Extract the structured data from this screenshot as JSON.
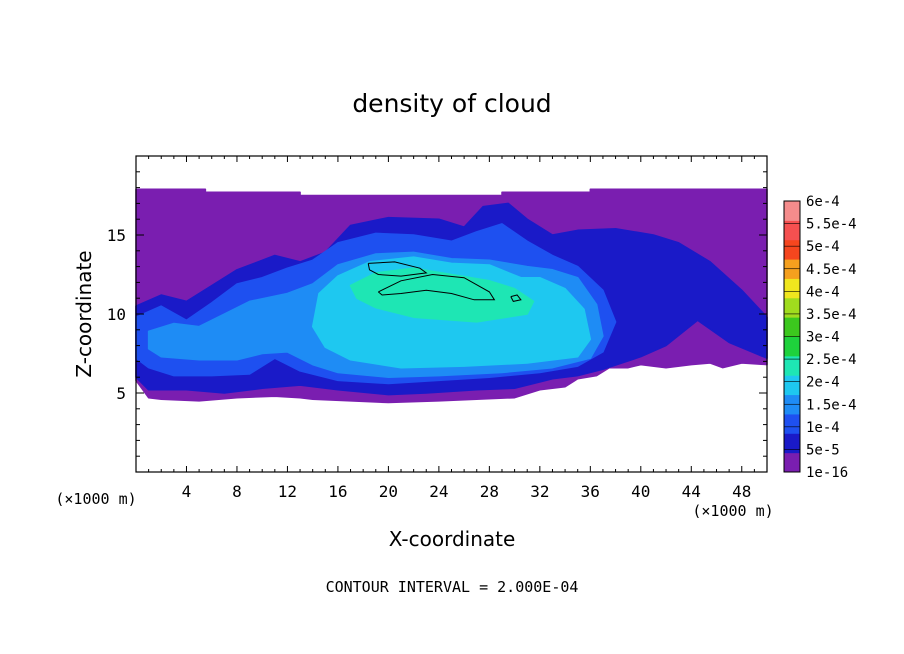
{
  "chart_data": {
    "type": "heatmap",
    "title": "density of cloud",
    "xlabel": "X-coordinate",
    "ylabel": "Z-coordinate",
    "x_unit": "(×1000 m)",
    "y_unit": "(×1000 m)",
    "xlim": [
      0,
      50
    ],
    "ylim": [
      0,
      20
    ],
    "x_ticks": [
      4,
      8,
      12,
      16,
      20,
      24,
      28,
      32,
      36,
      40,
      44,
      48
    ],
    "y_ticks": [
      5,
      10,
      15
    ],
    "footer": "CONTOUR INTERVAL = 2.000E-04",
    "contour_levels": [
      0.0002,
      0.0004
    ],
    "colorbar": {
      "labels": [
        "1e-16",
        "5e-5",
        "1e-4",
        "1.5e-4",
        "2e-4",
        "2.5e-4",
        "3e-4",
        "3.5e-4",
        "4e-4",
        "4.5e-4",
        "5e-4",
        "5.5e-4",
        "6e-4"
      ],
      "colors": [
        "#7a1eb0",
        "#1a1ac8",
        "#1e50f0",
        "#1e8cf5",
        "#1ec8f0",
        "#1ee6b4",
        "#1ed23c",
        "#3cc81e",
        "#a0dc1e",
        "#f0e61e",
        "#f5a01e",
        "#f5461e",
        "#f55050",
        "#f58c8c"
      ]
    },
    "regions": [
      {
        "level": "1e-16",
        "outline": [
          [
            0,
            17.9
          ],
          [
            5.5,
            17.9
          ],
          [
            5.5,
            17.7
          ],
          [
            13,
            17.7
          ],
          [
            13,
            17.5
          ],
          [
            29,
            17.5
          ],
          [
            29,
            17.7
          ],
          [
            36,
            17.7
          ],
          [
            36,
            17.9
          ],
          [
            50,
            17.9
          ],
          [
            50,
            6.8
          ],
          [
            48,
            6.9
          ],
          [
            46.5,
            6.6
          ],
          [
            45.5,
            6.9
          ],
          [
            44,
            6.8
          ],
          [
            42,
            6.6
          ],
          [
            40,
            6.8
          ],
          [
            39,
            6.6
          ],
          [
            37.5,
            6.6
          ],
          [
            36.5,
            6.1
          ],
          [
            35,
            5.9
          ],
          [
            34,
            5.4
          ],
          [
            32,
            5.2
          ],
          [
            30,
            4.7
          ],
          [
            27,
            4.6
          ],
          [
            24,
            4.5
          ],
          [
            20,
            4.4
          ],
          [
            17,
            4.5
          ],
          [
            14,
            4.6
          ],
          [
            13,
            4.7
          ],
          [
            11,
            4.8
          ],
          [
            8,
            4.7
          ],
          [
            5,
            4.5
          ],
          [
            2,
            4.6
          ],
          [
            1,
            4.7
          ],
          [
            0,
            5.8
          ]
        ]
      },
      {
        "level": "5e-5",
        "outline": [
          [
            0,
            10.5
          ],
          [
            2,
            11.2
          ],
          [
            4,
            10.8
          ],
          [
            6,
            11.8
          ],
          [
            8,
            12.8
          ],
          [
            11,
            13.7
          ],
          [
            13,
            13.3
          ],
          [
            15,
            13.9
          ],
          [
            17,
            15.6
          ],
          [
            20,
            16.1
          ],
          [
            24,
            16
          ],
          [
            26,
            15.5
          ],
          [
            27.5,
            16.8
          ],
          [
            29.5,
            17
          ],
          [
            31,
            16
          ],
          [
            33,
            15
          ],
          [
            35,
            15.3
          ],
          [
            38,
            15.4
          ],
          [
            41,
            15
          ],
          [
            43,
            14.5
          ],
          [
            45.5,
            13.3
          ],
          [
            48,
            11.5
          ],
          [
            50,
            9.8
          ],
          [
            50,
            7.2
          ],
          [
            47,
            8.2
          ],
          [
            44.5,
            9.6
          ],
          [
            42,
            8
          ],
          [
            40,
            7.3
          ],
          [
            37,
            6.5
          ],
          [
            35,
            6.1
          ],
          [
            33,
            5.9
          ],
          [
            30,
            5.3
          ],
          [
            27,
            5.2
          ],
          [
            23,
            5
          ],
          [
            20,
            4.9
          ],
          [
            16,
            5.2
          ],
          [
            13,
            5.5
          ],
          [
            10,
            5.3
          ],
          [
            7,
            5
          ],
          [
            4,
            5.2
          ],
          [
            1,
            5.2
          ],
          [
            0,
            6
          ]
        ]
      },
      {
        "level": "1e-4",
        "outline": [
          [
            0,
            9.8
          ],
          [
            2,
            10.5
          ],
          [
            4,
            9.6
          ],
          [
            6,
            10.7
          ],
          [
            8,
            11.9
          ],
          [
            10,
            12.3
          ],
          [
            12,
            12.9
          ],
          [
            14,
            13.4
          ],
          [
            16,
            14.5
          ],
          [
            19,
            15.1
          ],
          [
            22,
            15
          ],
          [
            25,
            14.6
          ],
          [
            27,
            15.2
          ],
          [
            29,
            15.7
          ],
          [
            31,
            14.6
          ],
          [
            33,
            13.7
          ],
          [
            35,
            13
          ],
          [
            37,
            11.5
          ],
          [
            38,
            9.5
          ],
          [
            37,
            7.6
          ],
          [
            35,
            6.7
          ],
          [
            32,
            6.3
          ],
          [
            28,
            6
          ],
          [
            24,
            5.8
          ],
          [
            20,
            5.6
          ],
          [
            16,
            5.8
          ],
          [
            13,
            6.4
          ],
          [
            11,
            7.2
          ],
          [
            9,
            6.2
          ],
          [
            6,
            6.1
          ],
          [
            3,
            6.1
          ],
          [
            1,
            6.6
          ],
          [
            0,
            7.2
          ]
        ]
      },
      {
        "level": "1.5e-4",
        "outline": [
          [
            1,
            8.9
          ],
          [
            3,
            9.4
          ],
          [
            5,
            9.2
          ],
          [
            7,
            10
          ],
          [
            9,
            10.8
          ],
          [
            12,
            11.3
          ],
          [
            14,
            11.9
          ],
          [
            16,
            13.1
          ],
          [
            19,
            13.8
          ],
          [
            22,
            13.9
          ],
          [
            25,
            13.5
          ],
          [
            28,
            13.4
          ],
          [
            31,
            13
          ],
          [
            33,
            12.8
          ],
          [
            35,
            12.3
          ],
          [
            36.5,
            10.6
          ],
          [
            37,
            8.6
          ],
          [
            36,
            7.2
          ],
          [
            33,
            6.6
          ],
          [
            29,
            6.3
          ],
          [
            24,
            6.1
          ],
          [
            20,
            6
          ],
          [
            16,
            6.3
          ],
          [
            14,
            6.8
          ],
          [
            12,
            7.6
          ],
          [
            10,
            7.5
          ],
          [
            8,
            7.1
          ],
          [
            5,
            7.1
          ],
          [
            2,
            7.3
          ],
          [
            1,
            7.8
          ]
        ]
      },
      {
        "level": "2e-4",
        "outline": [
          [
            14.5,
            11.3
          ],
          [
            16,
            12.4
          ],
          [
            18.5,
            13.3
          ],
          [
            22,
            13.6
          ],
          [
            25,
            13.2
          ],
          [
            28,
            13.1
          ],
          [
            30.5,
            12.3
          ],
          [
            32,
            12.3
          ],
          [
            34,
            11.6
          ],
          [
            35.5,
            10.3
          ],
          [
            36,
            8.4
          ],
          [
            35,
            7.3
          ],
          [
            31,
            6.9
          ],
          [
            26,
            6.7
          ],
          [
            21,
            6.6
          ],
          [
            17,
            7.1
          ],
          [
            15,
            7.9
          ],
          [
            14,
            9.2
          ]
        ]
      },
      {
        "level": "2.5e-4",
        "outline": [
          [
            17,
            11.8
          ],
          [
            19,
            12.6
          ],
          [
            22,
            12.9
          ],
          [
            25,
            12.5
          ],
          [
            28,
            12.1
          ],
          [
            30,
            11.6
          ],
          [
            31.5,
            10.8
          ],
          [
            31,
            10
          ],
          [
            27,
            9.5
          ],
          [
            22,
            9.8
          ],
          [
            19,
            10.4
          ],
          [
            17.5,
            11
          ]
        ]
      }
    ],
    "contours": [
      [
        [
          18.4,
          13.2
        ],
        [
          20.5,
          13.3
        ],
        [
          22.5,
          12.9
        ],
        [
          23,
          12.6
        ],
        [
          21,
          12.4
        ],
        [
          19.2,
          12.5
        ],
        [
          18.5,
          12.8
        ],
        [
          18.4,
          13.2
        ]
      ],
      [
        [
          19.2,
          11.4
        ],
        [
          21,
          12.1
        ],
        [
          23.5,
          12.5
        ],
        [
          26,
          12.3
        ],
        [
          28,
          11.4
        ],
        [
          28.4,
          10.9
        ],
        [
          26.8,
          10.9
        ],
        [
          25,
          11.3
        ],
        [
          23,
          11.5
        ],
        [
          21,
          11.3
        ],
        [
          19.5,
          11.2
        ],
        [
          19.2,
          11.4
        ]
      ],
      [
        [
          29.7,
          11.1
        ],
        [
          30.2,
          11.2
        ],
        [
          30.5,
          10.9
        ],
        [
          29.9,
          10.8
        ],
        [
          29.7,
          11.1
        ]
      ]
    ]
  }
}
